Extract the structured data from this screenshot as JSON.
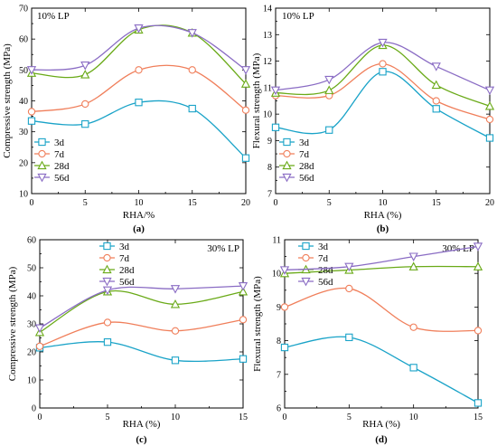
{
  "chart_data": [
    {
      "type": "line",
      "panel_label": "(a)",
      "annotation": "10% LP",
      "xlabel": "RHA/%",
      "ylabel": "Compressive strength (MPa)",
      "xlim": [
        0,
        20
      ],
      "ylim": [
        10,
        70
      ],
      "xticks": [
        0,
        5,
        10,
        15,
        20
      ],
      "yticks": [
        10,
        20,
        30,
        40,
        50,
        60,
        70
      ],
      "x": [
        0,
        5,
        10,
        15,
        20
      ],
      "legend_position": "bottom-left",
      "series": [
        {
          "name": "3d",
          "values": [
            33.5,
            32.5,
            39.5,
            37.5,
            21.5
          ],
          "color": "#1aa3c8",
          "marker": "square"
        },
        {
          "name": "7d",
          "values": [
            36.5,
            39,
            50,
            50,
            37
          ],
          "color": "#f07f5b",
          "marker": "circle"
        },
        {
          "name": "28d",
          "values": [
            49,
            48.5,
            63,
            62,
            45.5
          ],
          "color": "#6aaa18",
          "marker": "triangle-up"
        },
        {
          "name": "56d",
          "values": [
            50,
            51.5,
            63.5,
            62,
            50
          ],
          "color": "#8a6cc4",
          "marker": "triangle-down"
        }
      ]
    },
    {
      "type": "line",
      "panel_label": "(b)",
      "annotation": "10% LP",
      "xlabel": "RHA (%)",
      "ylabel": "Flexural strength (MPa)",
      "xlim": [
        0,
        20
      ],
      "ylim": [
        7,
        14
      ],
      "xticks": [
        0,
        5,
        10,
        15,
        20
      ],
      "yticks": [
        7,
        8,
        9,
        10,
        11,
        12,
        13,
        14
      ],
      "x": [
        0,
        5,
        10,
        15,
        20
      ],
      "legend_position": "bottom-left",
      "series": [
        {
          "name": "3d",
          "values": [
            9.5,
            9.4,
            11.6,
            10.2,
            9.1
          ],
          "color": "#1aa3c8",
          "marker": "square"
        },
        {
          "name": "7d",
          "values": [
            10.7,
            10.7,
            11.9,
            10.5,
            9.8
          ],
          "color": "#f07f5b",
          "marker": "circle"
        },
        {
          "name": "28d",
          "values": [
            10.8,
            10.9,
            12.6,
            11.1,
            10.3
          ],
          "color": "#6aaa18",
          "marker": "triangle-up"
        },
        {
          "name": "56d",
          "values": [
            10.9,
            11.3,
            12.7,
            11.8,
            10.9
          ],
          "color": "#8a6cc4",
          "marker": "triangle-down"
        }
      ]
    },
    {
      "type": "line",
      "panel_label": "(c)",
      "annotation": "30% LP",
      "xlabel": "RHA (%)",
      "ylabel": "Compressive strength (MPa)",
      "xlim": [
        0,
        15
      ],
      "ylim": [
        0,
        60
      ],
      "xticks": [
        0,
        5,
        10,
        15
      ],
      "yticks": [
        0,
        10,
        20,
        30,
        40,
        50,
        60
      ],
      "x": [
        0,
        5,
        10,
        15
      ],
      "legend_position": "top-center",
      "series": [
        {
          "name": "3d",
          "values": [
            21.5,
            23.5,
            17,
            17.5
          ],
          "color": "#1aa3c8",
          "marker": "square"
        },
        {
          "name": "7d",
          "values": [
            22,
            30.5,
            27.5,
            31.5
          ],
          "color": "#f07f5b",
          "marker": "circle"
        },
        {
          "name": "28d",
          "values": [
            27,
            41.5,
            37,
            41.5
          ],
          "color": "#6aaa18",
          "marker": "triangle-up"
        },
        {
          "name": "56d",
          "values": [
            28.5,
            42,
            42.5,
            43.5
          ],
          "color": "#8a6cc4",
          "marker": "triangle-down"
        }
      ]
    },
    {
      "type": "line",
      "panel_label": "(d)",
      "annotation": "30% LP",
      "xlabel": "RHA (%)",
      "ylabel": "Flexural strength (MPa)",
      "xlim": [
        0,
        15
      ],
      "ylim": [
        6,
        11
      ],
      "xticks": [
        0,
        5,
        10,
        15
      ],
      "yticks": [
        6,
        7,
        8,
        9,
        10,
        11
      ],
      "x": [
        0,
        5,
        10,
        15
      ],
      "legend_position": "top-center",
      "series": [
        {
          "name": "3d",
          "values": [
            7.8,
            8.1,
            7.2,
            6.15
          ],
          "color": "#1aa3c8",
          "marker": "square"
        },
        {
          "name": "7d",
          "values": [
            9.0,
            9.55,
            8.4,
            8.3
          ],
          "color": "#f07f5b",
          "marker": "circle"
        },
        {
          "name": "28d",
          "values": [
            10.0,
            10.1,
            10.2,
            10.2
          ],
          "color": "#6aaa18",
          "marker": "triangle-up"
        },
        {
          "name": "56d",
          "values": [
            10.1,
            10.2,
            10.5,
            10.8
          ],
          "color": "#8a6cc4",
          "marker": "triangle-down"
        }
      ]
    }
  ]
}
